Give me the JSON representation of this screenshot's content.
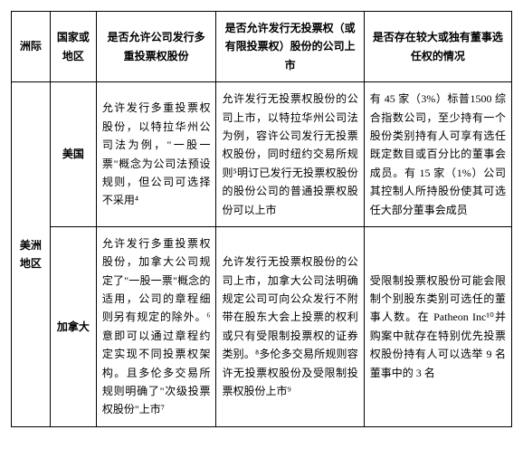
{
  "headers": {
    "region": "洲际",
    "country": "国家或地区",
    "q1": "是否允许公司发行多重投票权股份",
    "q2": "是否允许发行无投票权（或有限投票权）股份的公司上市",
    "q3": "是否存在较大或独有董事选任权的情况"
  },
  "region": "美洲地区",
  "rows": [
    {
      "country": "美国",
      "q1": "允许发行多重投票权股份，以特拉华州公司法为例，\"一股一票\"概念为公司法预设规则，但公司可选择不采用⁴",
      "q2": "允许发行无投票权股份的公司上市，以特拉华州公司法为例，容许公司发行无投票权股份，同时纽约交易所规则⁵明订已发行无投票权股份的股份公司的普通投票权股份可以上市",
      "q3": "有 45 家（3%）标普1500 综合指数公司，至少持有一个股份类别持有人可享有选任既定数目或百分比的董事会成员。有 15 家（1%）公司其控制人所持股份使其可选任大部分董事会成员"
    },
    {
      "country": "加拿大",
      "q1": "允许发行多重投票权股份，加拿大公司规定了\"一股一票\"概念的适用，公司的章程细则另有规定的除外。⁶意即可以通过章程约定实现不同投票权架构。且多伦多交易所规则明确了\"次级投票权股份\"上市⁷",
      "q2": "允许发行无投票权股份的公司上市，加拿大公司法明确规定公司可向公众发行不附带在股东大会上投票的权利或只有受限制投票权的证券类别。⁸多伦多交易所规则容许无投票权股份及受限制投票权股份上市⁹",
      "q3": "受限制投票权股份可能会限制个别股东类别可选任的董事人数。在 Patheon Inc¹⁰并购案中就存在特别优先投票权股份持有人可以选举 9 名董事中的 3 名"
    }
  ]
}
